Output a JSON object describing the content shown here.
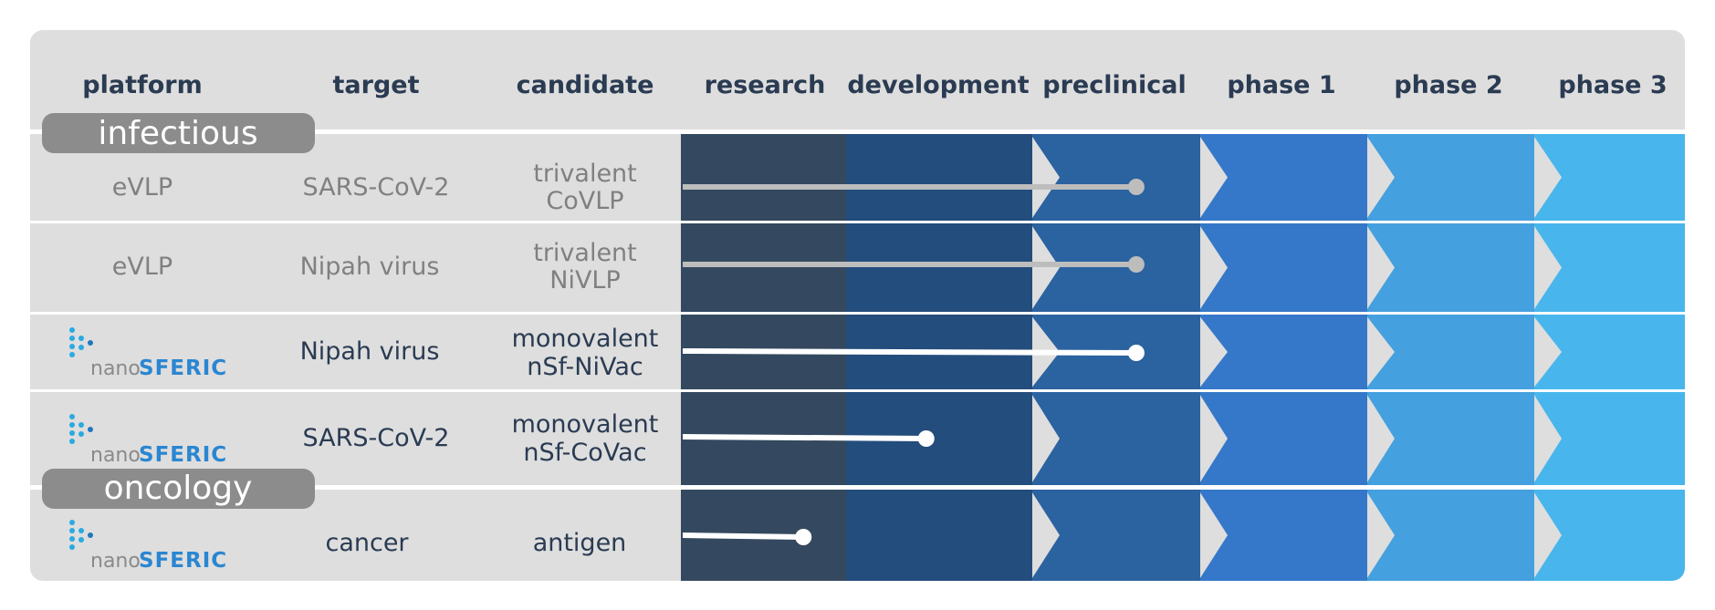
{
  "columns": {
    "platform": "platform",
    "target": "target",
    "candidate": "candidate",
    "stages": [
      "research",
      "development",
      "preclinical",
      "phase 1",
      "phase 2",
      "phase 3"
    ]
  },
  "stage_colors": [
    "#34495f",
    "#234d7c",
    "#2b62a0",
    "#3578c9",
    "#44a0de",
    "#48b6ec"
  ],
  "categories": {
    "infectious": "infectious",
    "oncology": "oncology"
  },
  "logo": {
    "nano": "nano",
    "brand": "SFERIC"
  },
  "rows": [
    {
      "platform": "eVLP",
      "platform_logo": false,
      "target": "SARS-CoV-2",
      "candidate": [
        "trivalent",
        "CoVLP"
      ],
      "muted": true,
      "progress_stage": "preclinical",
      "progress_fraction": 0.63
    },
    {
      "platform": "eVLP",
      "platform_logo": false,
      "target": "Nipah virus",
      "candidate": [
        "trivalent",
        "NiVLP"
      ],
      "muted": true,
      "progress_stage": "preclinical",
      "progress_fraction": 0.63
    },
    {
      "platform": "",
      "platform_logo": true,
      "target": "Nipah virus",
      "candidate": [
        "monovalent",
        "nSf-NiVac"
      ],
      "muted": false,
      "progress_stage": "preclinical",
      "progress_fraction": 0.63
    },
    {
      "platform": "",
      "platform_logo": true,
      "target": "SARS-CoV-2",
      "candidate": [
        "monovalent",
        "nSf-CoVac"
      ],
      "muted": false,
      "progress_stage": "development",
      "progress_fraction": 0.44
    },
    {
      "platform": "",
      "platform_logo": true,
      "target": "cancer",
      "candidate": [
        "antigen"
      ],
      "muted": false,
      "progress_stage": "research",
      "progress_fraction": 0.75
    }
  ]
}
